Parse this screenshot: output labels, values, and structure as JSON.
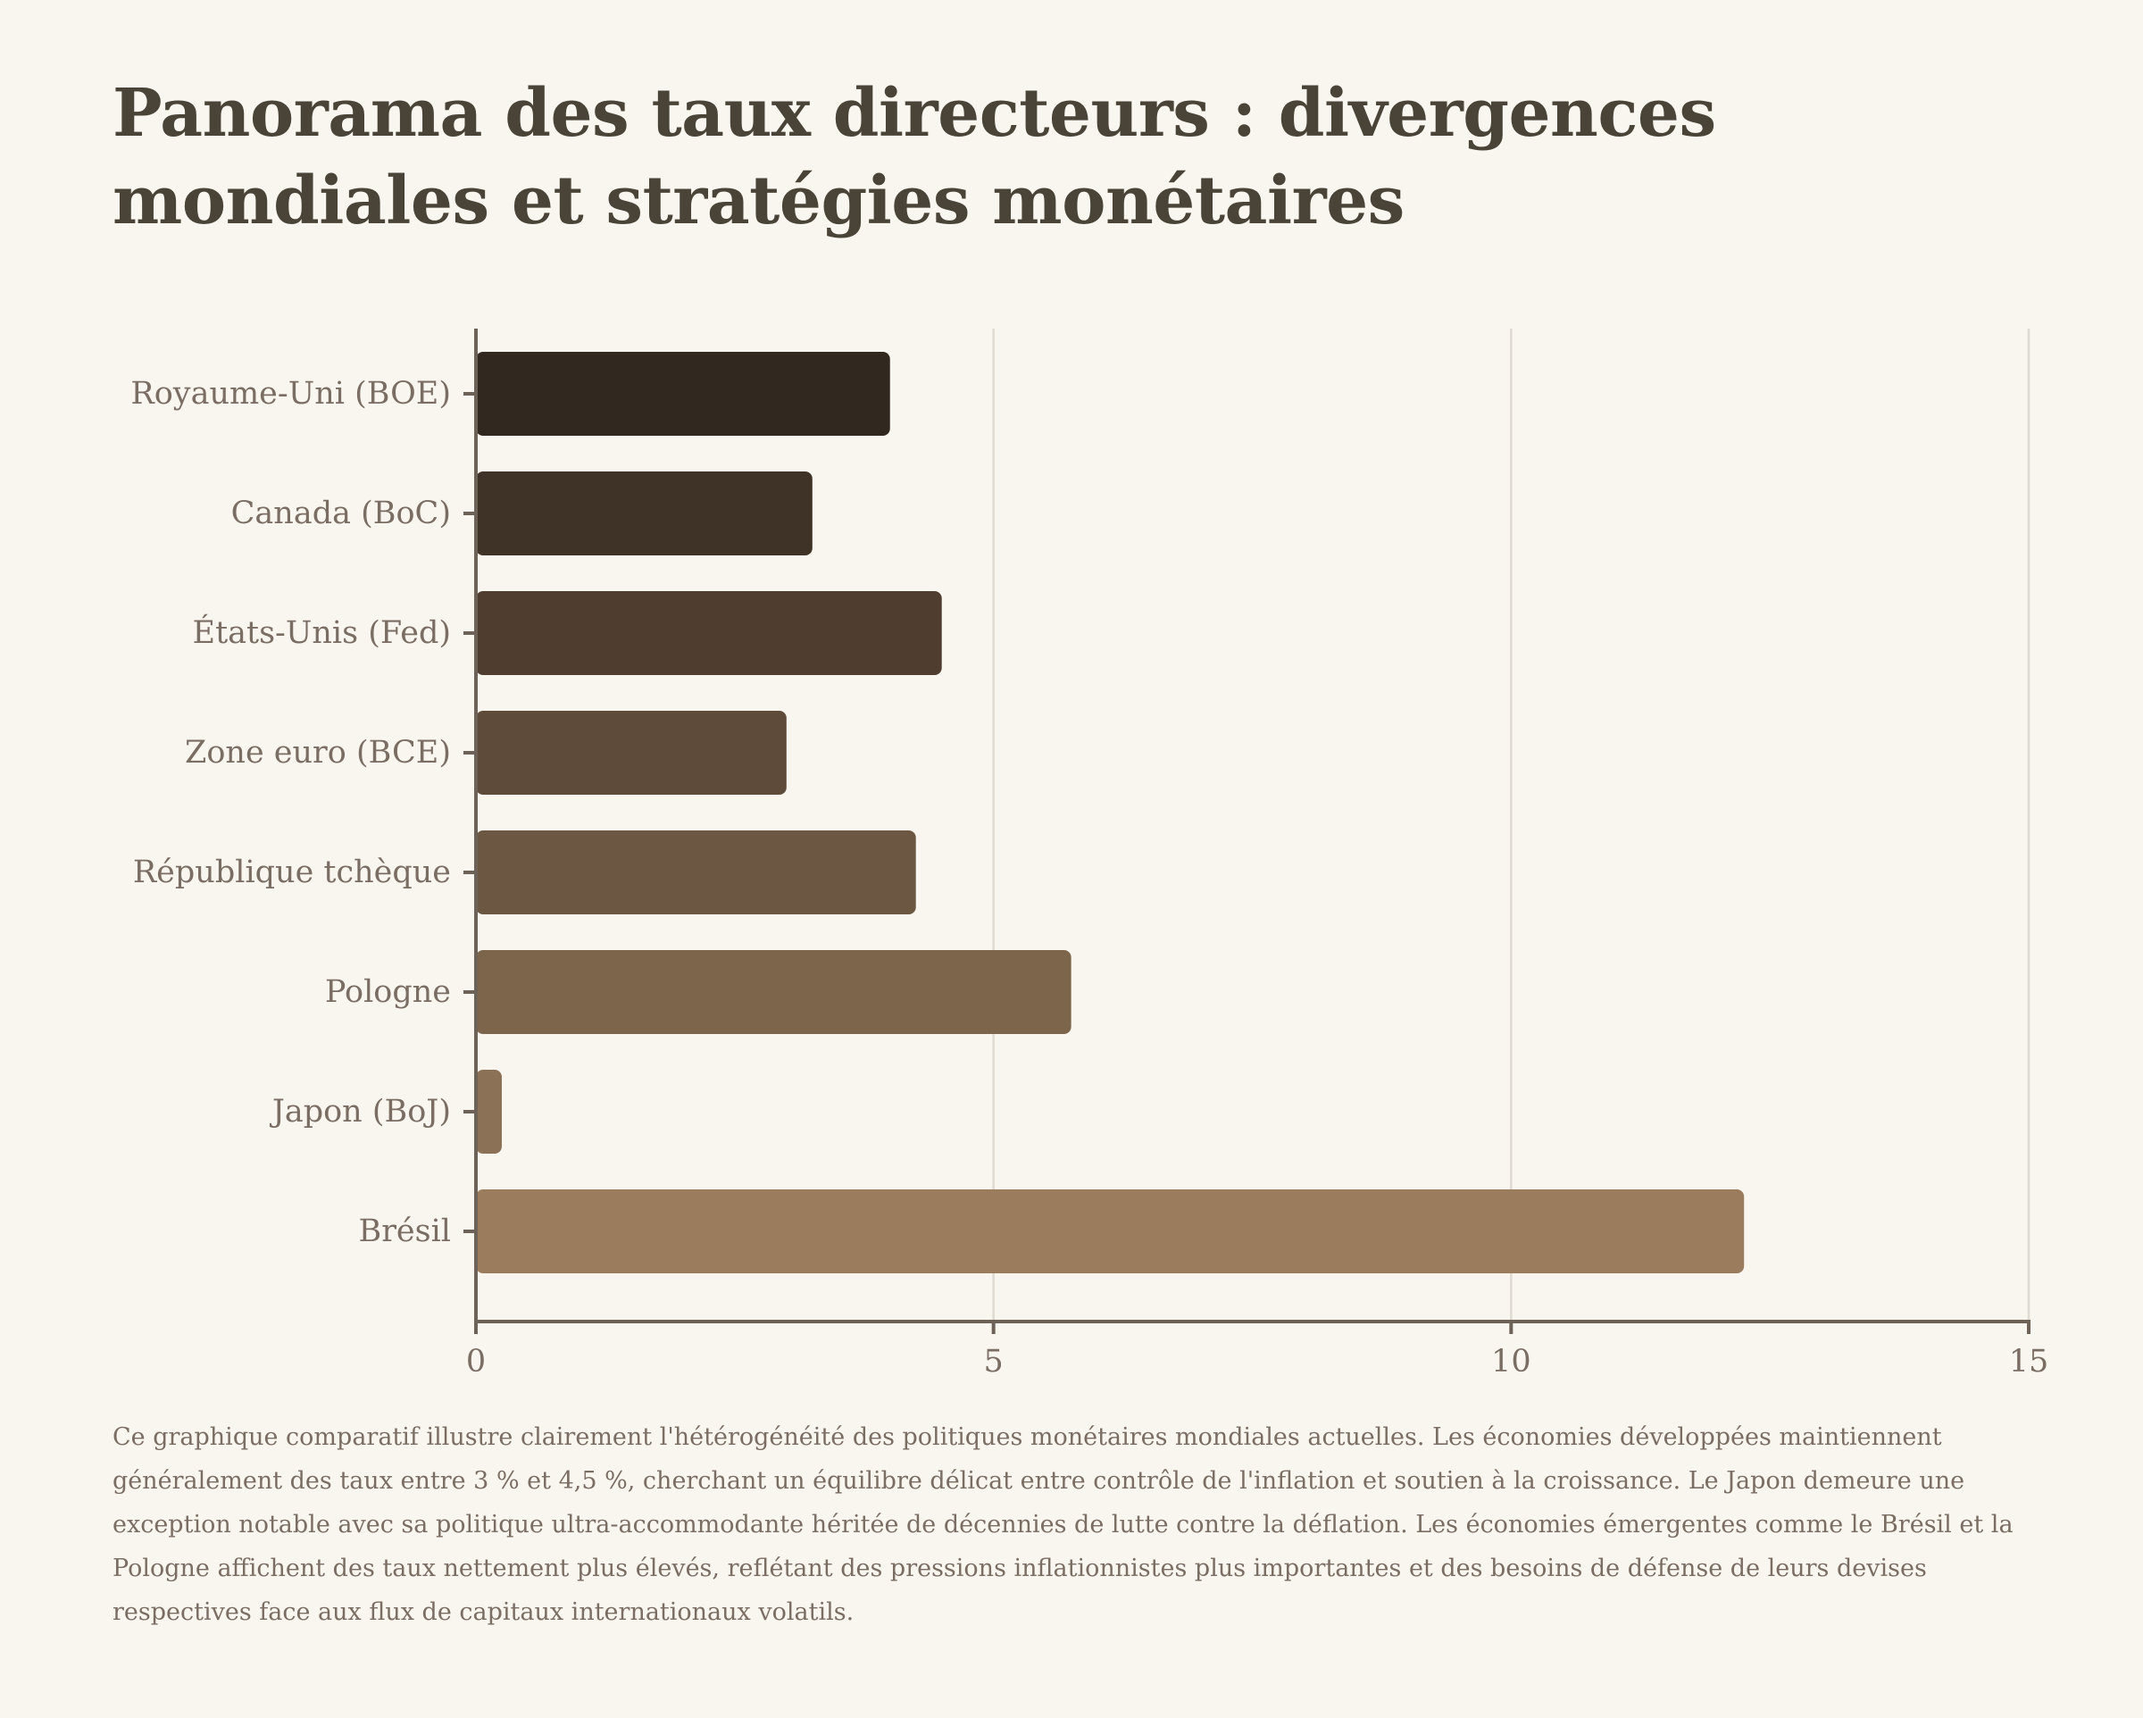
{
  "title": "Panorama des taux directeurs : divergences mondiales et stratégies monétaires",
  "caption": "Ce graphique comparatif illustre clairement l'hétérogénéité des politiques monétaires mondiales actuelles. Les économies développées maintiennent généralement des taux entre 3 % et 4,5 %, cherchant un équilibre délicat entre contrôle de l'inflation et soutien à la croissance. Le Japon demeure une exception notable avec sa politique ultra-accommodante héritée de décennies de lutte contre la déflation. Les économies émergentes comme le Brésil et la Pologne affichent des taux nettement plus élevés, reflétant des pressions inflationnistes plus importantes et des besoins de défense de leurs devises respectives face aux flux de capitaux internationaux volatils.",
  "chart_data": {
    "type": "bar",
    "orientation": "horizontal",
    "title": "Panorama des taux directeurs : divergences mondiales et stratégies monétaires",
    "xlabel": "",
    "ylabel": "",
    "xlim": [
      0,
      15
    ],
    "x_ticks": [
      0,
      5,
      10,
      15
    ],
    "grid": "vertical",
    "categories": [
      "Royaume-Uni (BOE)",
      "Canada (BoC)",
      "États-Unis (Fed)",
      "Zone euro (BCE)",
      "République tchèque",
      "Pologne",
      "Japon (BoJ)",
      "Brésil"
    ],
    "values": [
      4.0,
      3.25,
      4.5,
      3.0,
      4.25,
      5.75,
      0.25,
      12.25
    ],
    "colors": [
      "#31281f",
      "#3f3226",
      "#4f3e2f",
      "#5e4b39",
      "#6c5842",
      "#7c654b",
      "#8b7155",
      "#9b7c5c"
    ]
  },
  "style": {
    "axis_color": "#6d6257",
    "grid_color": "#dfdad2",
    "label_color": "#7a6e64"
  }
}
